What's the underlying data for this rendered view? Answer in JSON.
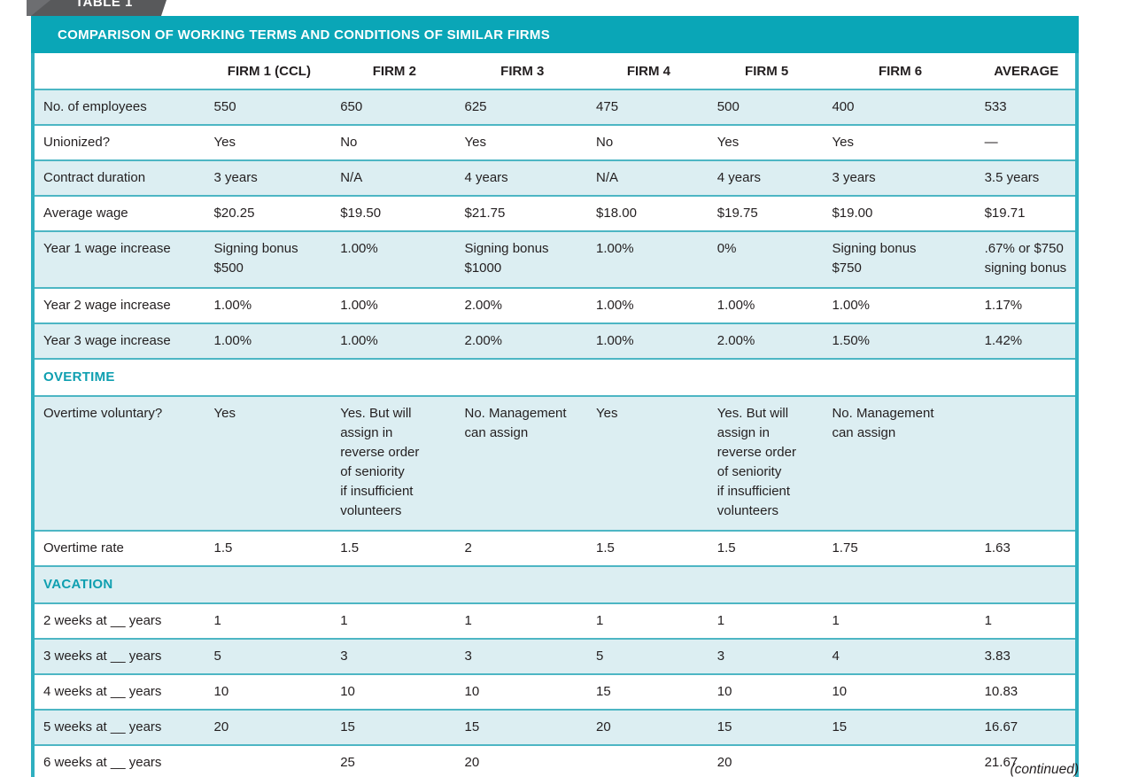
{
  "tab_label": "TABLE 1",
  "title": "COMPARISON OF WORKING TERMS AND CONDITIONS OF SIMILAR FIRMS",
  "continued_note": "(continued)",
  "colors": {
    "banner_teal": "#0aa6b7",
    "border_teal": "#2fafc0",
    "row_separator_teal": "#4db6c4",
    "row_alt_blue": "#dceef2",
    "section_text_teal": "#0f9fb0",
    "tab_gray": "#58595b",
    "text": "#231f20"
  },
  "table": {
    "columns": [
      "",
      "FIRM 1 (CCL)",
      "FIRM 2",
      "FIRM 3",
      "FIRM 4",
      "FIRM 5",
      "FIRM 6",
      "AVERAGE"
    ],
    "rows": [
      {
        "type": "data",
        "label": "No. of employees",
        "values": [
          "550",
          "650",
          "625",
          "475",
          "500",
          "400",
          "533"
        ]
      },
      {
        "type": "data",
        "label": "Unionized?",
        "values": [
          "Yes",
          "No",
          "Yes",
          "No",
          "Yes",
          "Yes",
          "—"
        ]
      },
      {
        "type": "data",
        "label": "Contract duration",
        "values": [
          "3 years",
          "N/A",
          "4 years",
          "N/A",
          "4 years",
          "3 years",
          "3.5 years"
        ]
      },
      {
        "type": "data",
        "label": "Average wage",
        "values": [
          "$20.25",
          "$19.50",
          "$21.75",
          "$18.00",
          "$19.75",
          "$19.00",
          "$19.71"
        ]
      },
      {
        "type": "data",
        "label": "Year 1 wage increase",
        "values": [
          "Signing bonus\n$500",
          "1.00%",
          "Signing bonus\n$1000",
          "1.00%",
          "0%",
          "Signing bonus\n$750",
          ".67% or $750\nsigning bonus"
        ]
      },
      {
        "type": "data",
        "label": "Year 2 wage increase",
        "values": [
          "1.00%",
          "1.00%",
          "2.00%",
          "1.00%",
          "1.00%",
          "1.00%",
          "1.17%"
        ]
      },
      {
        "type": "data",
        "label": "Year 3 wage increase",
        "values": [
          "1.00%",
          "1.00%",
          "2.00%",
          "1.00%",
          "2.00%",
          "1.50%",
          "1.42%"
        ]
      },
      {
        "type": "section",
        "label": "OVERTIME"
      },
      {
        "type": "data",
        "label": "Overtime voluntary?",
        "values": [
          "Yes",
          "Yes. But will\nassign in\nreverse order\nof seniority\nif insufficient\nvolunteers",
          "No. Management\ncan assign",
          "Yes",
          "Yes. But will\nassign in\nreverse order\nof seniority\nif insufficient\nvolunteers",
          "No. Management\ncan assign",
          ""
        ]
      },
      {
        "type": "data",
        "label": "Overtime rate",
        "values": [
          "1.5",
          "1.5",
          "2",
          "1.5",
          "1.5",
          "1.75",
          "1.63"
        ]
      },
      {
        "type": "section",
        "label": "VACATION"
      },
      {
        "type": "data",
        "label": "2 weeks at __ years",
        "values": [
          "1",
          "1",
          "1",
          "1",
          "1",
          "1",
          "1"
        ]
      },
      {
        "type": "data",
        "label": "3 weeks at __ years",
        "values": [
          "5",
          "3",
          "3",
          "5",
          "3",
          "4",
          "3.83"
        ]
      },
      {
        "type": "data",
        "label": "4 weeks at __ years",
        "values": [
          "10",
          "10",
          "10",
          "15",
          "10",
          "10",
          "10.83"
        ]
      },
      {
        "type": "data",
        "label": "5 weeks at __ years",
        "values": [
          "20",
          "15",
          "15",
          "20",
          "15",
          "15",
          "16.67"
        ]
      },
      {
        "type": "data",
        "label": "6 weeks at __ years",
        "values": [
          "",
          "25",
          "20",
          "",
          "20",
          "",
          "21.67"
        ]
      }
    ]
  }
}
